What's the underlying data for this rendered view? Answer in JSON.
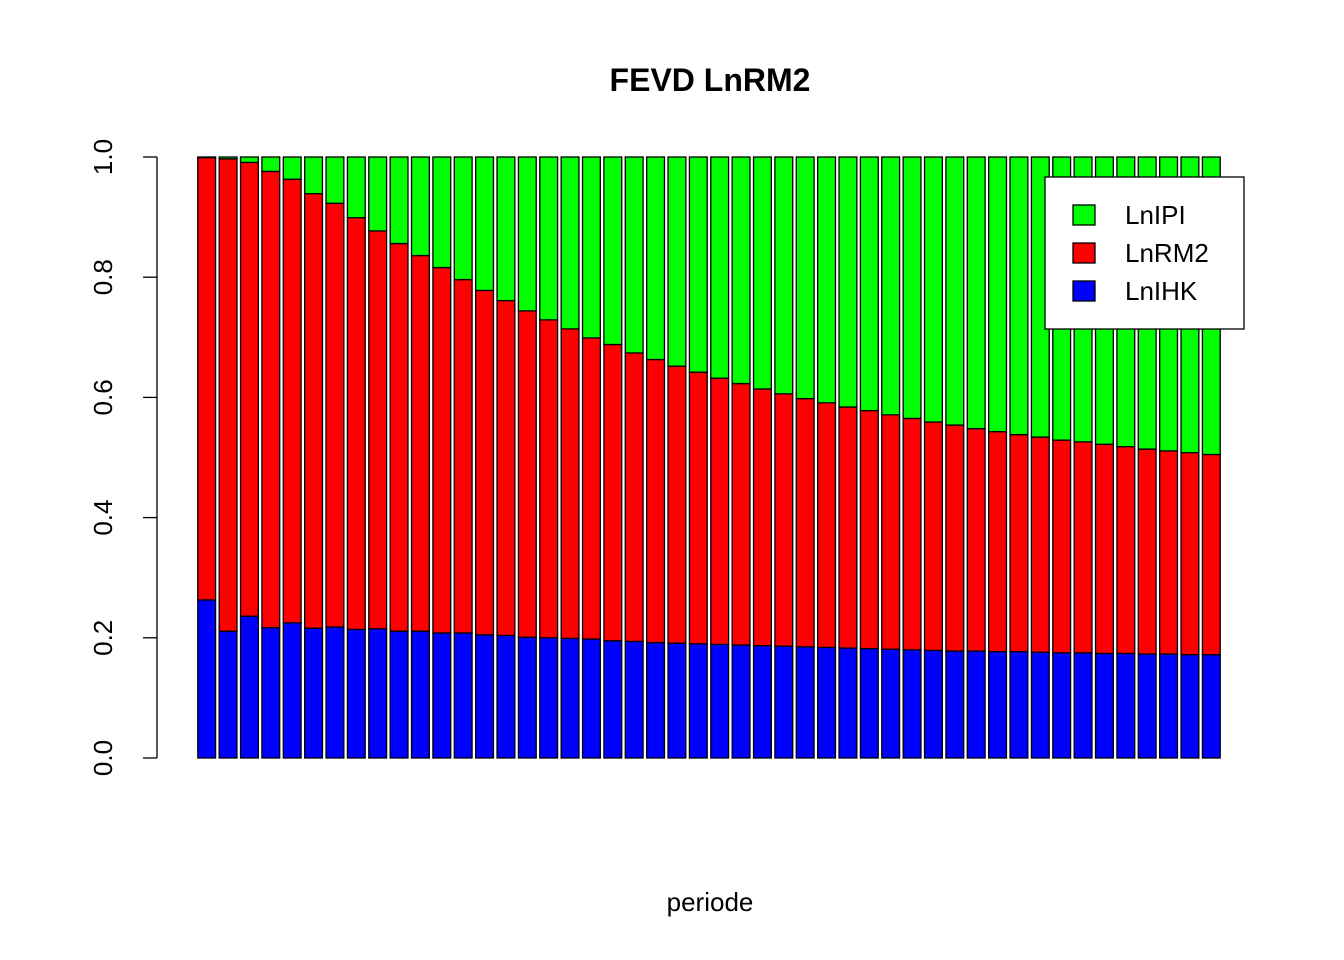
{
  "chart_data": {
    "type": "bar",
    "stacked": true,
    "title": "FEVD LnRM2",
    "xlabel": "periode",
    "ylabel": "",
    "ylim": [
      0,
      1
    ],
    "yticks": [
      "0.0",
      "0.2",
      "0.4",
      "0.6",
      "0.8",
      "1.0"
    ],
    "grid": false,
    "legend_position": "top-right",
    "series": [
      {
        "name": "LnIHK",
        "color": "#0000FF",
        "values": [
          0.263,
          0.211,
          0.236,
          0.217,
          0.225,
          0.216,
          0.218,
          0.214,
          0.215,
          0.211,
          0.211,
          0.208,
          0.208,
          0.205,
          0.204,
          0.201,
          0.2,
          0.199,
          0.198,
          0.195,
          0.194,
          0.192,
          0.191,
          0.19,
          0.189,
          0.188,
          0.187,
          0.186,
          0.185,
          0.184,
          0.183,
          0.182,
          0.181,
          0.18,
          0.179,
          0.178,
          0.178,
          0.177,
          0.177,
          0.176,
          0.175,
          0.175,
          0.174,
          0.174,
          0.173,
          0.173,
          0.172,
          0.172
        ]
      },
      {
        "name": "LnRM2",
        "color": "#FF0000",
        "values": [
          0.736,
          0.786,
          0.755,
          0.759,
          0.738,
          0.723,
          0.705,
          0.685,
          0.662,
          0.645,
          0.625,
          0.608,
          0.588,
          0.573,
          0.557,
          0.543,
          0.529,
          0.515,
          0.501,
          0.493,
          0.48,
          0.471,
          0.461,
          0.452,
          0.443,
          0.435,
          0.427,
          0.42,
          0.413,
          0.407,
          0.401,
          0.396,
          0.39,
          0.385,
          0.38,
          0.376,
          0.37,
          0.366,
          0.361,
          0.358,
          0.354,
          0.351,
          0.348,
          0.344,
          0.341,
          0.338,
          0.336,
          0.333
        ]
      },
      {
        "name": "LnIPI",
        "color": "#00FF00",
        "values": [
          0.001,
          0.003,
          0.009,
          0.024,
          0.037,
          0.061,
          0.077,
          0.101,
          0.123,
          0.144,
          0.164,
          0.184,
          0.204,
          0.222,
          0.239,
          0.256,
          0.271,
          0.286,
          0.301,
          0.312,
          0.326,
          0.337,
          0.348,
          0.358,
          0.368,
          0.377,
          0.386,
          0.394,
          0.402,
          0.409,
          0.416,
          0.422,
          0.429,
          0.435,
          0.441,
          0.446,
          0.452,
          0.457,
          0.462,
          0.466,
          0.471,
          0.474,
          0.478,
          0.482,
          0.486,
          0.489,
          0.492,
          0.495
        ]
      }
    ],
    "legend_order": [
      "LnIPI",
      "LnRM2",
      "LnIHK"
    ]
  }
}
